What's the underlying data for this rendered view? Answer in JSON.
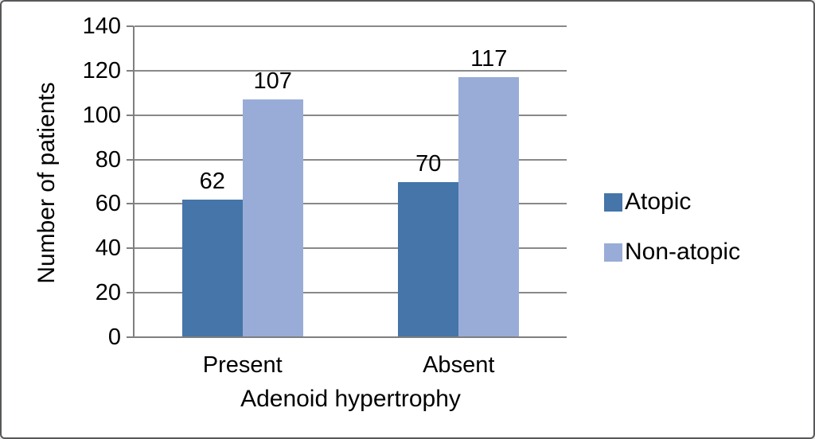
{
  "chart_data": {
    "type": "bar",
    "title": "",
    "categories": [
      "Present",
      "Absent"
    ],
    "series": [
      {
        "name": "Atopic",
        "color": "#4575a9",
        "values": [
          62,
          70
        ]
      },
      {
        "name": "Non-atopic",
        "color": "#99acd7",
        "values": [
          107,
          117
        ]
      }
    ],
    "xlabel": "Adenoid hypertrophy",
    "ylabel": "Number of patients",
    "ylim": [
      0,
      140
    ],
    "yticks": [
      0,
      20,
      40,
      60,
      80,
      100,
      120,
      140
    ],
    "grid": "horizontal",
    "legend_position": "right",
    "bar_value_labels": true
  },
  "colors": {
    "background": "#ffffff",
    "border": "#57585a",
    "gridline": "#898989",
    "axis": "#7f7f7f",
    "text": "#000000"
  }
}
